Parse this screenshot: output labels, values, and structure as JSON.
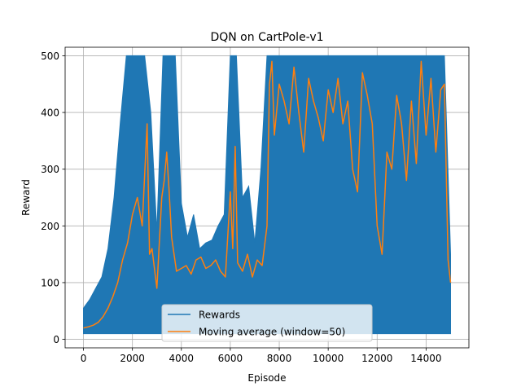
{
  "chart_data": {
    "type": "line",
    "title": "DQN on CartPole-v1",
    "xlabel": "Episode",
    "ylabel": "Reward",
    "xlim": [
      -750,
      15750
    ],
    "ylim": [
      -15,
      515
    ],
    "x_ticks": [
      0,
      2000,
      4000,
      6000,
      8000,
      10000,
      12000,
      14000
    ],
    "y_ticks": [
      0,
      100,
      200,
      300,
      400,
      500
    ],
    "grid": true,
    "legend_position": "lower-center",
    "series": [
      {
        "name": "Rewards",
        "color": "#1f77b4",
        "band": [
          [
            0,
            10,
            55
          ],
          [
            250,
            10,
            70
          ],
          [
            500,
            10,
            90
          ],
          [
            750,
            10,
            110
          ],
          [
            1000,
            10,
            160
          ],
          [
            1250,
            10,
            250
          ],
          [
            1500,
            10,
            380
          ],
          [
            1750,
            10,
            500
          ],
          [
            2000,
            10,
            500
          ],
          [
            2250,
            10,
            500
          ],
          [
            2500,
            10,
            500
          ],
          [
            2750,
            10,
            400
          ],
          [
            3000,
            10,
            190
          ],
          [
            3250,
            10,
            500
          ],
          [
            3500,
            10,
            500
          ],
          [
            3750,
            10,
            500
          ],
          [
            4000,
            10,
            240
          ],
          [
            4250,
            10,
            180
          ],
          [
            4500,
            10,
            220
          ],
          [
            4750,
            10,
            160
          ],
          [
            5000,
            10,
            170
          ],
          [
            5250,
            10,
            175
          ],
          [
            5500,
            10,
            200
          ],
          [
            5750,
            10,
            220
          ],
          [
            6000,
            10,
            500
          ],
          [
            6250,
            10,
            500
          ],
          [
            6500,
            10,
            250
          ],
          [
            6750,
            10,
            270
          ],
          [
            7000,
            10,
            170
          ],
          [
            7250,
            10,
            300
          ],
          [
            7500,
            10,
            500
          ],
          [
            7750,
            10,
            500
          ],
          [
            8000,
            10,
            500
          ],
          [
            8250,
            10,
            500
          ],
          [
            8500,
            10,
            500
          ],
          [
            8750,
            10,
            500
          ],
          [
            9000,
            10,
            500
          ],
          [
            9250,
            10,
            500
          ],
          [
            9500,
            10,
            500
          ],
          [
            9750,
            10,
            500
          ],
          [
            10000,
            10,
            500
          ],
          [
            10250,
            10,
            500
          ],
          [
            10500,
            10,
            500
          ],
          [
            10750,
            10,
            500
          ],
          [
            11000,
            10,
            500
          ],
          [
            11250,
            10,
            500
          ],
          [
            11500,
            10,
            500
          ],
          [
            11750,
            10,
            500
          ],
          [
            12000,
            10,
            500
          ],
          [
            12250,
            10,
            500
          ],
          [
            12500,
            10,
            500
          ],
          [
            12750,
            10,
            500
          ],
          [
            13000,
            10,
            500
          ],
          [
            13250,
            10,
            500
          ],
          [
            13500,
            10,
            500
          ],
          [
            13750,
            10,
            500
          ],
          [
            14000,
            10,
            500
          ],
          [
            14250,
            10,
            500
          ],
          [
            14500,
            10,
            500
          ],
          [
            14750,
            10,
            500
          ],
          [
            15000,
            10,
            150
          ]
        ]
      },
      {
        "name": "Moving average (window=50)",
        "color": "#ff7f0e",
        "x": [
          0,
          200,
          400,
          600,
          800,
          1000,
          1200,
          1400,
          1600,
          1800,
          2000,
          2200,
          2400,
          2600,
          2700,
          2800,
          3000,
          3200,
          3300,
          3400,
          3500,
          3600,
          3800,
          4000,
          4200,
          4400,
          4600,
          4800,
          5000,
          5200,
          5400,
          5600,
          5800,
          6000,
          6100,
          6200,
          6300,
          6500,
          6700,
          6900,
          7100,
          7300,
          7500,
          7600,
          7700,
          7800,
          8000,
          8200,
          8400,
          8600,
          8800,
          9000,
          9200,
          9400,
          9600,
          9800,
          10000,
          10200,
          10400,
          10600,
          10800,
          11000,
          11200,
          11400,
          11600,
          11800,
          12000,
          12200,
          12400,
          12600,
          12800,
          13000,
          13200,
          13400,
          13600,
          13800,
          14000,
          14200,
          14400,
          14600,
          14750,
          14900,
          15000
        ],
        "y": [
          20,
          22,
          25,
          30,
          40,
          55,
          75,
          100,
          140,
          170,
          220,
          250,
          200,
          380,
          150,
          160,
          90,
          250,
          280,
          330,
          260,
          180,
          120,
          125,
          130,
          115,
          140,
          145,
          125,
          130,
          140,
          120,
          110,
          260,
          160,
          340,
          135,
          120,
          150,
          110,
          140,
          130,
          200,
          450,
          490,
          360,
          450,
          420,
          380,
          480,
          400,
          330,
          460,
          420,
          390,
          350,
          440,
          400,
          460,
          380,
          420,
          300,
          260,
          470,
          430,
          380,
          200,
          150,
          330,
          300,
          430,
          380,
          280,
          420,
          310,
          490,
          360,
          460,
          330,
          440,
          450,
          140,
          100
        ]
      }
    ]
  }
}
